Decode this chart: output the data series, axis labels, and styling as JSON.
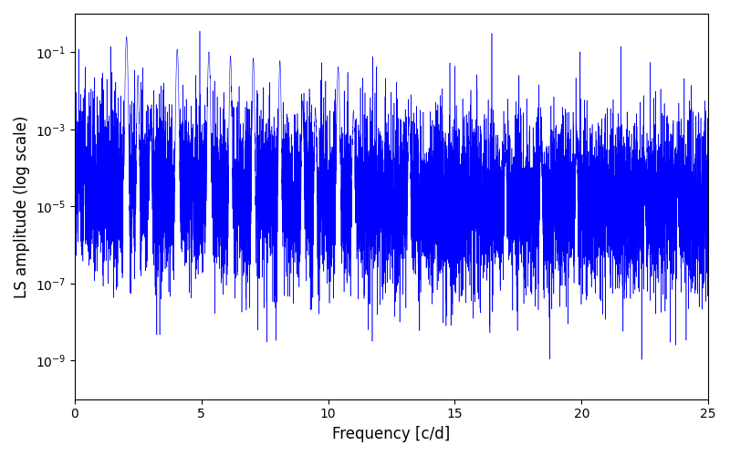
{
  "xlabel": "Frequency [c/d]",
  "ylabel": "LS amplitude (log scale)",
  "xlim": [
    0,
    25
  ],
  "ylim": [
    1e-10,
    1.0
  ],
  "color": "#0000ff",
  "linewidth": 0.4,
  "figsize": [
    8.0,
    5.0
  ],
  "dpi": 100,
  "seed": 77,
  "n_points": 10000,
  "freq_max": 25.0,
  "background": "#ffffff",
  "yticks_powers": [
    -9,
    -7,
    -5,
    -3,
    -1
  ],
  "xticks": [
    0,
    5,
    10,
    15,
    20,
    25
  ]
}
